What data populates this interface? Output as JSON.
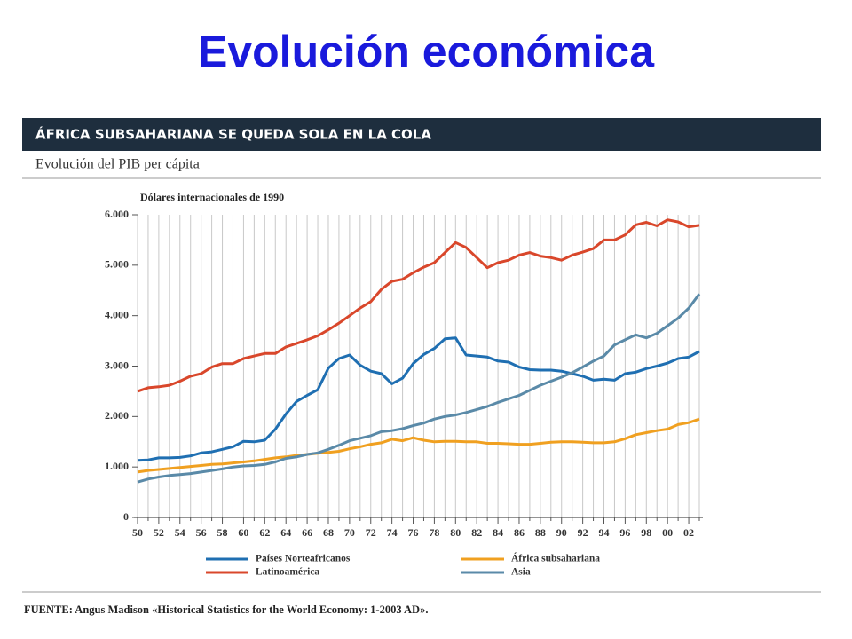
{
  "slide": {
    "title": "Evolución económica"
  },
  "chart_data": {
    "type": "line",
    "title": "ÁFRICA SUBSAHARIANA SE QUEDA SOLA EN LA COLA",
    "subtitle": "Evolución del PIB per cápita",
    "y_label": "Dólares internacionales de 1990",
    "source": "FUENTE: Angus Madison «Historical Statistics for the World Economy: 1-2003 AD».",
    "categories": [
      "50",
      null,
      "52",
      null,
      "54",
      null,
      "56",
      null,
      "58",
      null,
      "60",
      null,
      "62",
      null,
      "64",
      null,
      "66",
      null,
      "68",
      null,
      "70",
      null,
      "72",
      null,
      "74",
      null,
      "76",
      null,
      "78",
      null,
      "80",
      null,
      "82",
      null,
      "84",
      null,
      "86",
      null,
      "88",
      null,
      "90",
      null,
      "92",
      null,
      "94",
      null,
      "96",
      null,
      "98",
      null,
      "00",
      null,
      "02",
      null
    ],
    "ylim": [
      0,
      6000
    ],
    "yticks": [
      0,
      {
        "value": 1000,
        "label": "1.000"
      },
      {
        "value": 2000,
        "label": "2.000"
      },
      {
        "value": 3000,
        "label": "3.000"
      },
      {
        "value": 4000,
        "label": "4.000"
      },
      {
        "value": 5000,
        "label": "5.000"
      },
      {
        "value": 6000,
        "label": "6.000"
      }
    ],
    "grid": true,
    "series": [
      {
        "name": "Países Norteafricanos",
        "color": "#1f6fb2",
        "values": [
          1130,
          1140,
          1180,
          1180,
          1190,
          1220,
          1280,
          1300,
          1350,
          1400,
          1510,
          1500,
          1530,
          1750,
          2050,
          2300,
          2420,
          2530,
          2960,
          3150,
          3220,
          3020,
          2900,
          2850,
          2650,
          2760,
          3050,
          3230,
          3350,
          3540,
          3560,
          3220,
          3200,
          3180,
          3100,
          3080,
          2980,
          2930,
          2920,
          2920,
          2900,
          2850,
          2800,
          2720,
          2740,
          2720,
          2850,
          2880,
          2950,
          3000,
          3060,
          3150,
          3180,
          3290
        ]
      },
      {
        "name": "África subsahariana",
        "color": "#f0a020",
        "values": [
          900,
          930,
          950,
          970,
          990,
          1010,
          1030,
          1050,
          1060,
          1080,
          1100,
          1120,
          1150,
          1180,
          1200,
          1230,
          1250,
          1270,
          1290,
          1310,
          1360,
          1400,
          1450,
          1480,
          1550,
          1520,
          1580,
          1530,
          1500,
          1510,
          1510,
          1500,
          1500,
          1470,
          1470,
          1460,
          1450,
          1450,
          1470,
          1490,
          1500,
          1500,
          1490,
          1480,
          1480,
          1500,
          1560,
          1640,
          1680,
          1720,
          1750,
          1840,
          1880,
          1950
        ]
      },
      {
        "name": "Latinoamérica",
        "color": "#d9472b",
        "values": [
          2500,
          2570,
          2590,
          2620,
          2700,
          2800,
          2850,
          2980,
          3050,
          3050,
          3150,
          3200,
          3250,
          3250,
          3380,
          3450,
          3520,
          3600,
          3720,
          3850,
          4000,
          4150,
          4280,
          4520,
          4680,
          4720,
          4850,
          4960,
          5050,
          5250,
          5450,
          5350,
          5150,
          4950,
          5050,
          5100,
          5200,
          5250,
          5180,
          5150,
          5100,
          5200,
          5260,
          5330,
          5500,
          5500,
          5600,
          5800,
          5850,
          5780,
          5900,
          5860,
          5760,
          5790
        ]
      },
      {
        "name": "Asia",
        "color": "#5a8aa8",
        "values": [
          700,
          760,
          800,
          830,
          850,
          870,
          900,
          930,
          960,
          1000,
          1020,
          1030,
          1050,
          1100,
          1170,
          1200,
          1250,
          1280,
          1350,
          1430,
          1520,
          1570,
          1620,
          1700,
          1720,
          1760,
          1820,
          1870,
          1950,
          2000,
          2030,
          2080,
          2140,
          2200,
          2280,
          2350,
          2420,
          2520,
          2620,
          2700,
          2780,
          2870,
          2980,
          3100,
          3200,
          3420,
          3520,
          3620,
          3560,
          3650,
          3800,
          3950,
          4150,
          4430
        ]
      }
    ]
  }
}
